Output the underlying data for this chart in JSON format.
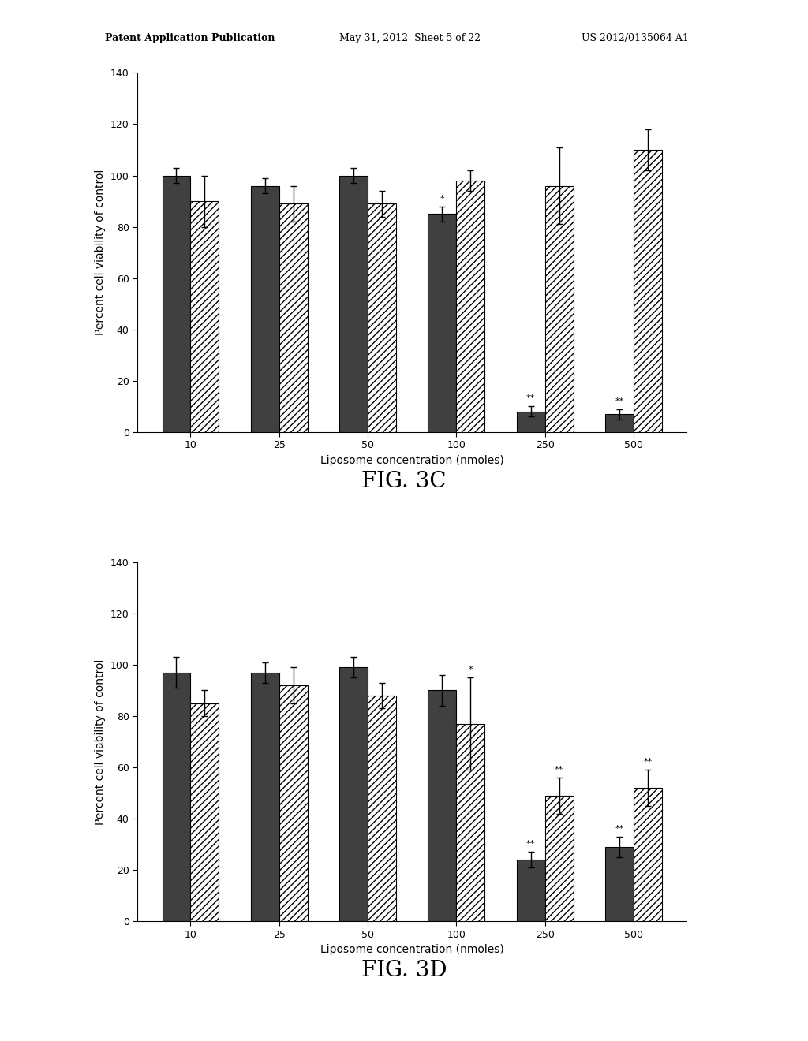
{
  "fig3c": {
    "categories": [
      "10",
      "25",
      "50",
      "100",
      "250",
      "500"
    ],
    "dark_values": [
      100,
      96,
      100,
      85,
      8,
      7
    ],
    "dark_errors": [
      3,
      3,
      3,
      3,
      2,
      2
    ],
    "hatch_values": [
      90,
      89,
      89,
      98,
      96,
      110
    ],
    "hatch_errors": [
      10,
      7,
      5,
      4,
      15,
      8
    ],
    "dark_annotations": [
      "",
      "",
      "",
      "*",
      "**",
      "**"
    ],
    "hatch_annotations": [
      "",
      "",
      "",
      "",
      "",
      ""
    ],
    "xlabel": "Liposome concentration (nmoles)",
    "ylabel": "Percent cell viability of control",
    "ylim": [
      0,
      140
    ],
    "yticks": [
      0,
      20,
      40,
      60,
      80,
      100,
      120,
      140
    ],
    "fig_label": "FIG. 3C"
  },
  "fig3d": {
    "categories": [
      "10",
      "25",
      "50",
      "100",
      "250",
      "500"
    ],
    "dark_values": [
      97,
      97,
      99,
      90,
      24,
      29
    ],
    "dark_errors": [
      6,
      4,
      4,
      6,
      3,
      4
    ],
    "hatch_values": [
      85,
      92,
      88,
      77,
      49,
      52
    ],
    "hatch_errors": [
      5,
      7,
      5,
      18,
      7,
      7
    ],
    "dark_annotations": [
      "",
      "",
      "",
      "",
      "**",
      "**"
    ],
    "hatch_annotations": [
      "",
      "",
      "",
      "*",
      "**",
      "**"
    ],
    "xlabel": "Liposome concentration (nmoles)",
    "ylabel": "Percent cell viability of control",
    "ylim": [
      0,
      140
    ],
    "yticks": [
      0,
      20,
      40,
      60,
      80,
      100,
      120,
      140
    ],
    "fig_label": "FIG. 3D"
  },
  "header_left": "Patent Application Publication",
  "header_mid": "May 31, 2012  Sheet 5 of 22",
  "header_right": "US 2012/0135064 A1",
  "background_color": "#ffffff",
  "dark_color": "#404040",
  "hatch_facecolor": "#ffffff",
  "hatch_pattern": "////",
  "bar_width": 0.32,
  "font_size_axis": 10,
  "font_size_tick": 9,
  "font_size_annot": 8,
  "font_size_fig_label": 20,
  "font_size_header": 9
}
